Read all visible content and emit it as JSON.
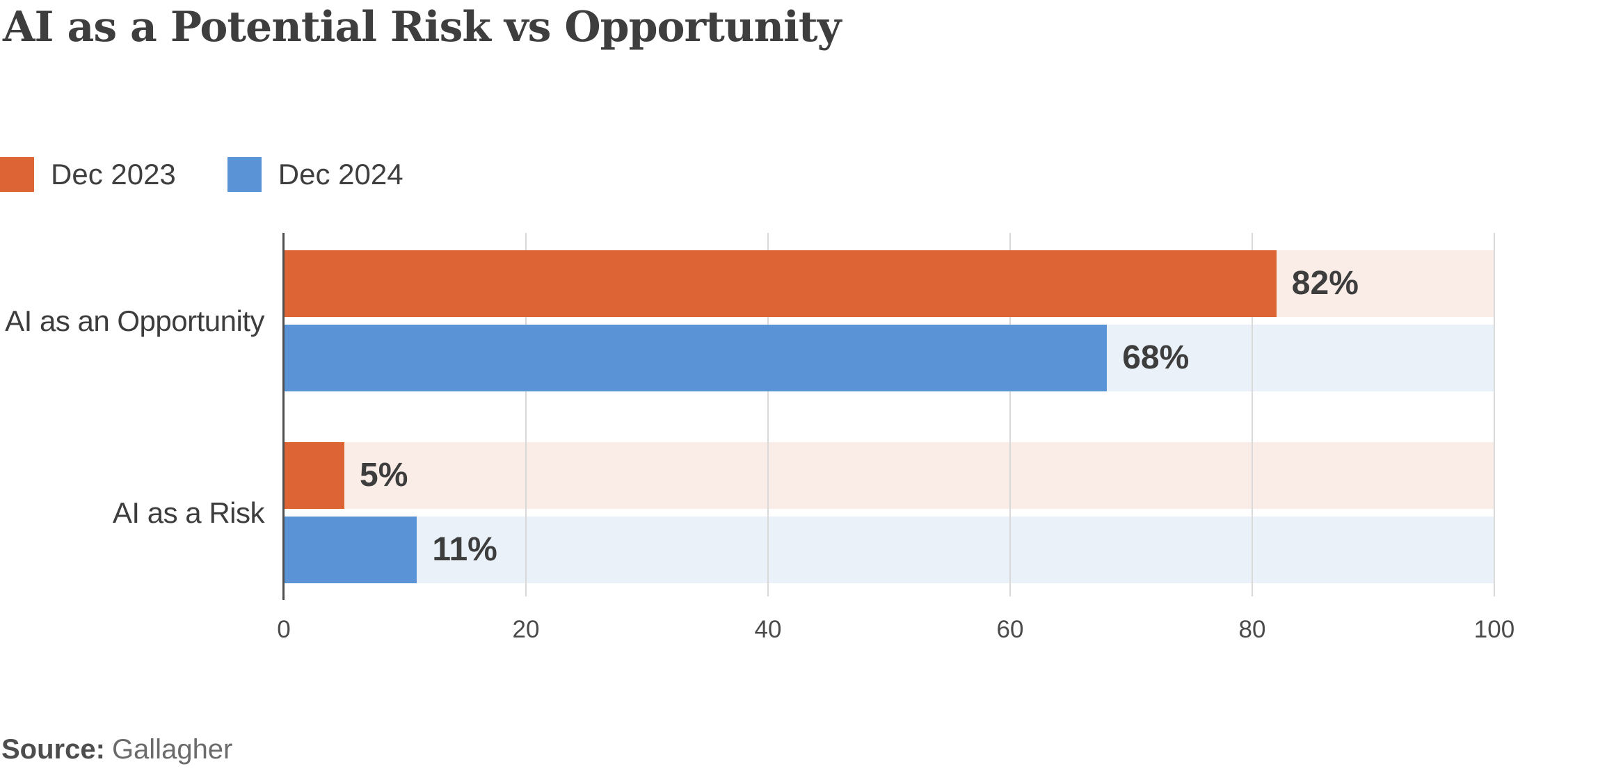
{
  "title": "AI as a Potential Risk vs Opportunity",
  "legend": {
    "items": [
      {
        "label": "Dec 2023",
        "color": "#DC6435"
      },
      {
        "label": "Dec 2024",
        "color": "#5B93D7"
      }
    ]
  },
  "source": {
    "label": "Source:",
    "value": "Gallagher"
  },
  "colors": {
    "series_dec2023": "#DC6435",
    "series_dec2023_track": "#FAEDE7",
    "series_dec2024": "#5B93D7",
    "series_dec2024_track": "#EAF1F9",
    "axis_line": "#4F4F4F",
    "gridline": "#D9D9D9",
    "title_text": "#3E3E3E",
    "label_text": "#3D3D3D",
    "value_text": "#3D3D3D",
    "tick_text": "#4A4A4A",
    "source_label_text": "#4D4D4D",
    "source_value_text": "#6B6B6B"
  },
  "chart_data": {
    "type": "bar",
    "orientation": "horizontal",
    "title": "AI as a Potential Risk vs Opportunity",
    "categories": [
      "AI as an Opportunity",
      "AI as a Risk"
    ],
    "series": [
      {
        "name": "Dec 2023",
        "color": "#DC6435",
        "track_color": "#FAEDE7",
        "values": [
          82,
          5
        ]
      },
      {
        "name": "Dec 2024",
        "color": "#5B93D7",
        "track_color": "#EAF1F9",
        "values": [
          68,
          11
        ]
      }
    ],
    "value_labels": [
      [
        "82%",
        "5%"
      ],
      [
        "68%",
        "11%"
      ]
    ],
    "value_suffix": "%",
    "xlim": [
      0,
      100
    ],
    "x_ticks": [
      0,
      20,
      40,
      60,
      80,
      100
    ],
    "grid": "vertical-gridlines",
    "tracks_extend_to_max": true,
    "legend_position": "top-left",
    "source_text": "Gallagher"
  }
}
